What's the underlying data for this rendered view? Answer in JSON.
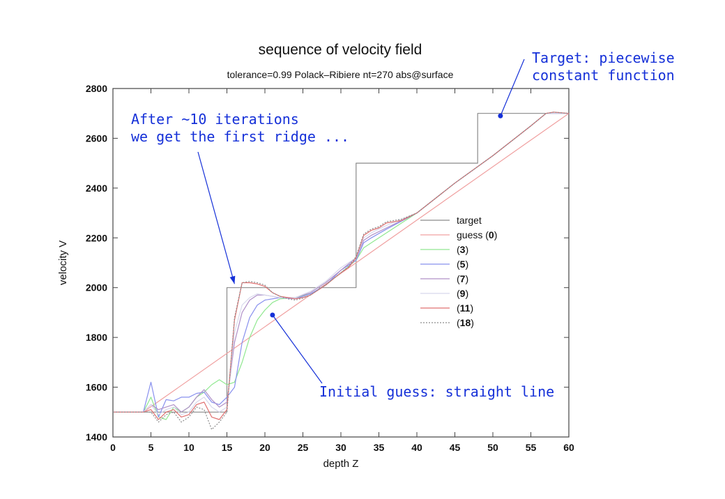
{
  "chart_data": {
    "type": "line",
    "title": "sequence of velocity field",
    "subtitle": "tolerance=0.99 Polack–Ribiere nt=270 abs@surface",
    "xlabel": "depth Z",
    "ylabel": "velocity V",
    "xlim": [
      0,
      60
    ],
    "ylim": [
      1400,
      2800
    ],
    "x_ticks": [
      0,
      5,
      10,
      15,
      20,
      25,
      30,
      35,
      40,
      45,
      50,
      55,
      60
    ],
    "y_ticks": [
      1400,
      1600,
      1800,
      2000,
      2200,
      2400,
      2600,
      2800
    ],
    "grid": false,
    "legend_position": "right-center",
    "series": [
      {
        "name": "target",
        "color": "#8a8a8a",
        "dashed": false,
        "x": [
          0,
          15,
          15,
          32,
          32,
          48,
          48,
          60
        ],
        "y": [
          1500,
          1500,
          2000,
          2000,
          2500,
          2500,
          2700,
          2700
        ]
      },
      {
        "name": "guess (0)",
        "color": "#f0a0a0",
        "dashed": false,
        "x": [
          0,
          4,
          60
        ],
        "y": [
          1500,
          1500,
          2700
        ]
      },
      {
        "name": "(3)",
        "color": "#90e890",
        "dashed": false,
        "x": [
          0,
          4,
          5,
          6,
          7,
          8,
          9,
          10,
          11,
          12,
          13,
          14,
          15,
          16,
          17,
          18,
          19,
          20,
          21,
          22,
          24,
          26,
          28,
          30,
          32,
          33,
          34,
          36,
          40,
          45,
          50,
          55,
          57,
          60
        ],
        "y": [
          1500,
          1500,
          1560,
          1480,
          1470,
          1520,
          1500,
          1520,
          1560,
          1580,
          1610,
          1630,
          1610,
          1620,
          1700,
          1800,
          1870,
          1910,
          1940,
          1955,
          1960,
          1975,
          2010,
          2060,
          2110,
          2160,
          2180,
          2220,
          2300,
          2420,
          2530,
          2650,
          2700,
          2700
        ]
      },
      {
        "name": "(5)",
        "color": "#8890ee",
        "dashed": false,
        "x": [
          0,
          4,
          5,
          6,
          7,
          8,
          9,
          10,
          11,
          12,
          13,
          14,
          15,
          16,
          17,
          18,
          19,
          20,
          22,
          24,
          26,
          28,
          30,
          32,
          33,
          34,
          36,
          40,
          45,
          50,
          55,
          57,
          60
        ],
        "y": [
          1500,
          1500,
          1620,
          1480,
          1550,
          1545,
          1560,
          1560,
          1575,
          1580,
          1540,
          1530,
          1560,
          1600,
          1780,
          1880,
          1930,
          1950,
          1960,
          1955,
          1975,
          2010,
          2070,
          2110,
          2180,
          2200,
          2235,
          2300,
          2420,
          2530,
          2650,
          2700,
          2700
        ]
      },
      {
        "name": "(7)",
        "color": "#b090c8",
        "dashed": false,
        "x": [
          0,
          4,
          5,
          6,
          7,
          8,
          9,
          10,
          11,
          12,
          13,
          14,
          15,
          16,
          17,
          18,
          19,
          20,
          22,
          24,
          26,
          28,
          30,
          32,
          33,
          34,
          36,
          40,
          45,
          50,
          55,
          57,
          60
        ],
        "y": [
          1500,
          1500,
          1530,
          1510,
          1520,
          1530,
          1500,
          1520,
          1560,
          1590,
          1550,
          1520,
          1540,
          1780,
          1900,
          1950,
          1970,
          1970,
          1960,
          1960,
          1980,
          2020,
          2070,
          2120,
          2190,
          2210,
          2240,
          2300,
          2420,
          2530,
          2650,
          2700,
          2700
        ]
      },
      {
        "name": "(9)",
        "color": "#d8d8ec",
        "dashed": false,
        "x": [
          0,
          4,
          5,
          6,
          7,
          8,
          9,
          10,
          11,
          12,
          13,
          14,
          15,
          16,
          17,
          18,
          19,
          20,
          22,
          24,
          26,
          28,
          30,
          32,
          33,
          34,
          36,
          40,
          45,
          50,
          55,
          57,
          60
        ],
        "y": [
          1500,
          1500,
          1530,
          1490,
          1510,
          1520,
          1490,
          1500,
          1540,
          1560,
          1520,
          1500,
          1520,
          1820,
          1930,
          1960,
          1975,
          1970,
          1960,
          1960,
          1985,
          2025,
          2080,
          2120,
          2200,
          2220,
          2250,
          2300,
          2420,
          2530,
          2650,
          2700,
          2700
        ]
      },
      {
        "name": "(11)",
        "color": "#e07070",
        "dashed": false,
        "x": [
          0,
          4,
          5,
          6,
          7,
          8,
          9,
          10,
          11,
          12,
          13,
          14,
          15,
          16,
          17,
          18,
          19,
          20,
          21,
          22,
          23,
          24,
          25,
          26,
          28,
          30,
          31,
          32,
          33,
          34,
          35,
          36,
          38,
          40,
          45,
          50,
          55,
          57,
          58,
          60
        ],
        "y": [
          1500,
          1500,
          1510,
          1470,
          1500,
          1510,
          1480,
          1490,
          1530,
          1540,
          1480,
          1470,
          1510,
          1870,
          2020,
          2020,
          2015,
          2005,
          1980,
          1965,
          1960,
          1955,
          1960,
          1970,
          2010,
          2060,
          2080,
          2120,
          2210,
          2230,
          2240,
          2260,
          2270,
          2300,
          2420,
          2530,
          2650,
          2700,
          2705,
          2700
        ]
      },
      {
        "name": "(18)",
        "color": "#8c8c8c",
        "dashed": true,
        "x": [
          0,
          4,
          5,
          6,
          7,
          8,
          9,
          10,
          11,
          12,
          13,
          14,
          15,
          16,
          17,
          18,
          19,
          20,
          21,
          22,
          23,
          24,
          25,
          26,
          28,
          30,
          31,
          32,
          33,
          34,
          35,
          36,
          38,
          40,
          45,
          50,
          55,
          57,
          58,
          60
        ],
        "y": [
          1500,
          1500,
          1500,
          1460,
          1490,
          1500,
          1460,
          1480,
          1520,
          1510,
          1430,
          1460,
          1500,
          1880,
          2020,
          2025,
          2020,
          2010,
          1980,
          1965,
          1955,
          1950,
          1958,
          1970,
          2012,
          2060,
          2085,
          2125,
          2215,
          2235,
          2245,
          2265,
          2275,
          2300,
          2420,
          2530,
          2650,
          2700,
          2705,
          2700
        ]
      }
    ],
    "legend_labels": [
      {
        "name": "target",
        "bold": ""
      },
      {
        "name": "guess (",
        "bold": "0",
        "suffix": ")"
      },
      {
        "name": "(",
        "bold": "3",
        "suffix": ")"
      },
      {
        "name": "(",
        "bold": "5",
        "suffix": ")"
      },
      {
        "name": "(",
        "bold": "7",
        "suffix": ")"
      },
      {
        "name": "(",
        "bold": "9",
        "suffix": ")"
      },
      {
        "name": "(",
        "bold": "11",
        "suffix": ")"
      },
      {
        "name": "(",
        "bold": "18",
        "suffix": ")"
      }
    ],
    "annotations": [
      {
        "id": "target-note",
        "lines": [
          "Target: piecewise",
          "constant function"
        ],
        "point": [
          51,
          2690
        ]
      },
      {
        "id": "ridge-note",
        "lines": [
          "After ~10 iterations",
          "we get the first ridge ..."
        ],
        "point": [
          16,
          2015
        ]
      },
      {
        "id": "guess-note",
        "lines": [
          "Initial guess: straight line"
        ],
        "point": [
          21,
          1890
        ]
      }
    ]
  }
}
